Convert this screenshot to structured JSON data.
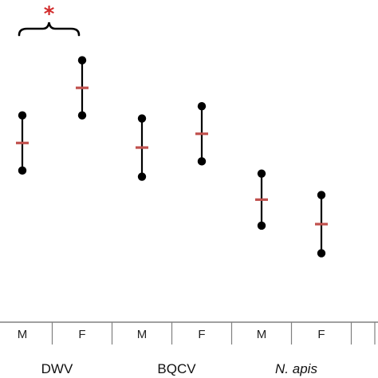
{
  "chart_data": {
    "type": "dot-range",
    "ylim": [
      0,
      100
    ],
    "grid": false,
    "categories": [
      "M",
      "F",
      "M",
      "F",
      "M",
      "F"
    ],
    "groups": [
      {
        "label": "DWV",
        "italic": false,
        "span": [
          0,
          1
        ]
      },
      {
        "label": "BQCV",
        "italic": false,
        "span": [
          2,
          3
        ]
      },
      {
        "label": "N. apis",
        "italic": true,
        "span": [
          4,
          5
        ]
      }
    ],
    "points": [
      {
        "category": "M",
        "group": "DWV",
        "low": 49,
        "mean": 58,
        "high": 67
      },
      {
        "category": "F",
        "group": "DWV",
        "low": 67,
        "mean": 76,
        "high": 85
      },
      {
        "category": "M",
        "group": "BQCV",
        "low": 47,
        "mean": 56.5,
        "high": 66
      },
      {
        "category": "F",
        "group": "BQCV",
        "low": 52,
        "mean": 61,
        "high": 70
      },
      {
        "category": "M",
        "group": "N. apis",
        "low": 31,
        "mean": 39.5,
        "high": 48
      },
      {
        "category": "F",
        "group": "N. apis",
        "low": 22,
        "mean": 31.5,
        "high": 41
      }
    ],
    "annotations": [
      {
        "type": "significance-brace",
        "text": "*",
        "between": [
          0,
          1
        ],
        "color": "#d22b2b"
      }
    ]
  },
  "colors": {
    "range": "#000000",
    "mean_marker": "#c0504d",
    "axis": "#808080",
    "significance": "#d22b2b"
  }
}
